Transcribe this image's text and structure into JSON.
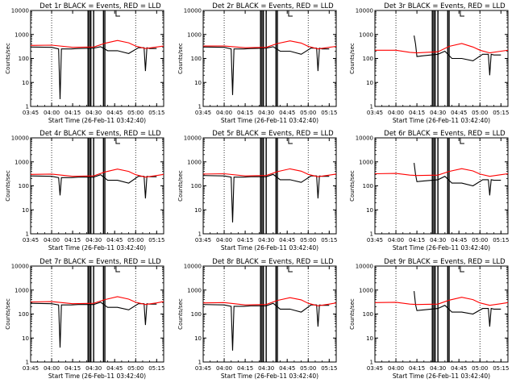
{
  "chart_data": [
    {
      "type": "line",
      "title": "Det 1r BLACK = Events, RED = LLD",
      "xlabel": "Start Time (26-Feb-11 03:42:40)",
      "ylabel": "Counts/sec",
      "yscale": "log",
      "ylim": [
        1,
        10000
      ],
      "xlim": [
        "03:45",
        "05:20"
      ],
      "grid": false,
      "x_ticks": [
        "03:45",
        "04:00",
        "04:15",
        "04:30",
        "04:45",
        "05:00",
        "05:15"
      ],
      "y_ticks": [
        "1",
        "10",
        "100",
        "1000",
        "10000"
      ],
      "series": [
        {
          "name": "Events",
          "color": "#000000",
          "x": [
            "03:45",
            "04:00",
            "04:05",
            "04:06",
            "04:07",
            "04:14",
            "04:19",
            "04:30",
            "04:35",
            "04:40",
            "04:47",
            "04:55",
            "05:02",
            "05:06",
            "05:07",
            "05:08",
            "05:10",
            "05:15"
          ],
          "values": [
            300,
            290,
            250,
            2,
            250,
            250,
            260,
            270,
            310,
            210,
            210,
            160,
            280,
            280,
            30,
            280,
            260,
            260
          ]
        },
        {
          "name": "LLD",
          "color": "#ff0000",
          "x": [
            "03:45",
            "04:00",
            "04:15",
            "04:30",
            "04:38",
            "04:47",
            "04:55",
            "05:00",
            "05:07",
            "05:15",
            "05:20"
          ],
          "values": [
            350,
            360,
            290,
            300,
            430,
            560,
            450,
            330,
            260,
            300,
            330
          ]
        }
      ]
    },
    {
      "type": "line",
      "title": "Det 2r BLACK = Events, RED = LLD",
      "xlabel": "Start Time (26-Feb-11 03:42:40)",
      "ylabel": "Counts/sec",
      "yscale": "log",
      "ylim": [
        1,
        10000
      ],
      "xlim": [
        "03:45",
        "05:20"
      ],
      "grid": false,
      "x_ticks": [
        "03:45",
        "04:00",
        "04:15",
        "04:30",
        "04:45",
        "05:00",
        "05:15"
      ],
      "y_ticks": [
        "1",
        "10",
        "100",
        "1000",
        "10000"
      ],
      "series": [
        {
          "name": "Events",
          "color": "#000000",
          "x": [
            "03:45",
            "04:00",
            "04:05",
            "04:06",
            "04:07",
            "04:14",
            "04:19",
            "04:30",
            "04:35",
            "04:40",
            "04:47",
            "04:55",
            "05:02",
            "05:06",
            "05:07",
            "05:08",
            "05:10",
            "05:15"
          ],
          "values": [
            300,
            290,
            250,
            3,
            250,
            250,
            260,
            270,
            310,
            200,
            200,
            150,
            270,
            270,
            30,
            270,
            250,
            250
          ]
        },
        {
          "name": "LLD",
          "color": "#ff0000",
          "x": [
            "03:45",
            "04:00",
            "04:15",
            "04:30",
            "04:38",
            "04:47",
            "04:55",
            "05:00",
            "05:07",
            "05:15",
            "05:20"
          ],
          "values": [
            330,
            330,
            280,
            290,
            420,
            540,
            440,
            320,
            250,
            290,
            320
          ]
        }
      ]
    },
    {
      "type": "line",
      "title": "Det 3r BLACK = Events, RED = LLD",
      "xlabel": "Start Time (26-Feb-11 03:42:40)",
      "ylabel": "Counts/sec",
      "yscale": "log",
      "ylim": [
        1,
        10000
      ],
      "xlim": [
        "03:45",
        "05:20"
      ],
      "grid": false,
      "x_ticks": [
        "03:45",
        "04:00",
        "04:15",
        "04:30",
        "04:45",
        "05:00",
        "05:15"
      ],
      "y_ticks": [
        "1",
        "10",
        "100",
        "1000",
        "10000"
      ],
      "series": [
        {
          "name": "Events",
          "color": "#000000",
          "x": [
            "04:13",
            "04:14",
            "04:15",
            "04:20",
            "04:30",
            "04:35",
            "04:40",
            "04:47",
            "04:55",
            "05:02",
            "05:06",
            "05:07",
            "05:08",
            "05:10",
            "05:15"
          ],
          "values": [
            900,
            400,
            120,
            130,
            150,
            200,
            100,
            100,
            80,
            150,
            150,
            20,
            150,
            140,
            140
          ]
        },
        {
          "name": "LLD",
          "color": "#ff0000",
          "x": [
            "03:45",
            "04:00",
            "04:10",
            "04:15",
            "04:30",
            "04:38",
            "04:47",
            "04:55",
            "05:00",
            "05:07",
            "05:15",
            "05:20"
          ],
          "values": [
            220,
            220,
            180,
            170,
            190,
            320,
            420,
            300,
            220,
            170,
            200,
            220
          ]
        }
      ]
    },
    {
      "type": "line",
      "title": "Det 4r BLACK = Events, RED = LLD",
      "xlabel": "Start Time (26-Feb-11 03:42:40)",
      "ylabel": "Counts/sec",
      "yscale": "log",
      "ylim": [
        1,
        10000
      ],
      "xlim": [
        "03:45",
        "05:20"
      ],
      "grid": false,
      "x_ticks": [
        "03:45",
        "04:00",
        "04:15",
        "04:30",
        "04:45",
        "05:00",
        "05:15"
      ],
      "y_ticks": [
        "1",
        "10",
        "100",
        "1000",
        "10000"
      ],
      "series": [
        {
          "name": "Events",
          "color": "#000000",
          "x": [
            "03:45",
            "04:00",
            "04:05",
            "04:06",
            "04:07",
            "04:14",
            "04:19",
            "04:30",
            "04:35",
            "04:40",
            "04:47",
            "04:55",
            "05:02",
            "05:06",
            "05:07",
            "05:08",
            "05:10",
            "05:15"
          ],
          "values": [
            260,
            250,
            220,
            40,
            220,
            220,
            230,
            230,
            290,
            170,
            170,
            130,
            250,
            250,
            30,
            250,
            240,
            240
          ]
        },
        {
          "name": "LLD",
          "color": "#ff0000",
          "x": [
            "03:45",
            "04:00",
            "04:15",
            "04:30",
            "04:38",
            "04:47",
            "04:55",
            "05:00",
            "05:07",
            "05:15",
            "05:20"
          ],
          "values": [
            300,
            310,
            250,
            260,
            380,
            500,
            400,
            290,
            230,
            270,
            300
          ]
        }
      ]
    },
    {
      "type": "line",
      "title": "Det 5r BLACK = Events, RED = LLD",
      "xlabel": "Start Time (26-Feb-11 03:42:40)",
      "ylabel": "Counts/sec",
      "yscale": "log",
      "ylim": [
        1,
        10000
      ],
      "xlim": [
        "03:45",
        "05:20"
      ],
      "grid": false,
      "x_ticks": [
        "03:45",
        "04:00",
        "04:15",
        "04:30",
        "04:45",
        "05:00",
        "05:15"
      ],
      "y_ticks": [
        "1",
        "10",
        "100",
        "1000",
        "10000"
      ],
      "series": [
        {
          "name": "Events",
          "color": "#000000",
          "x": [
            "03:45",
            "04:00",
            "04:05",
            "04:06",
            "04:07",
            "04:14",
            "04:19",
            "04:30",
            "04:35",
            "04:40",
            "04:47",
            "04:55",
            "05:02",
            "05:06",
            "05:07",
            "05:08",
            "05:10",
            "05:15"
          ],
          "values": [
            270,
            260,
            230,
            3,
            230,
            230,
            240,
            240,
            300,
            180,
            180,
            140,
            260,
            260,
            30,
            260,
            250,
            250
          ]
        },
        {
          "name": "LLD",
          "color": "#ff0000",
          "x": [
            "03:45",
            "04:00",
            "04:15",
            "04:30",
            "04:38",
            "04:47",
            "04:55",
            "05:00",
            "05:07",
            "05:15",
            "05:20"
          ],
          "values": [
            310,
            320,
            260,
            270,
            390,
            510,
            410,
            300,
            240,
            280,
            310
          ]
        }
      ]
    },
    {
      "type": "line",
      "title": "Det 6r BLACK = Events, RED = LLD",
      "xlabel": "Start Time (26-Feb-11 03:42:40)",
      "ylabel": "Counts/sec",
      "yscale": "log",
      "ylim": [
        1,
        10000
      ],
      "xlim": [
        "03:45",
        "05:20"
      ],
      "grid": false,
      "x_ticks": [
        "03:45",
        "04:00",
        "04:15",
        "04:30",
        "04:45",
        "05:00",
        "05:15"
      ],
      "y_ticks": [
        "1",
        "10",
        "100",
        "1000",
        "10000"
      ],
      "series": [
        {
          "name": "Events",
          "color": "#000000",
          "x": [
            "04:13",
            "04:14",
            "04:15",
            "04:20",
            "04:30",
            "04:35",
            "04:40",
            "04:47",
            "04:55",
            "05:02",
            "05:06",
            "05:07",
            "05:08",
            "05:10",
            "05:15"
          ],
          "values": [
            900,
            300,
            150,
            160,
            180,
            250,
            130,
            130,
            100,
            180,
            180,
            40,
            180,
            170,
            170
          ]
        },
        {
          "name": "LLD",
          "color": "#ff0000",
          "x": [
            "03:45",
            "04:00",
            "04:10",
            "04:15",
            "04:30",
            "04:38",
            "04:47",
            "04:55",
            "05:00",
            "05:07",
            "05:15",
            "05:20"
          ],
          "values": [
            320,
            330,
            280,
            270,
            280,
            400,
            520,
            420,
            310,
            250,
            290,
            320
          ]
        }
      ]
    },
    {
      "type": "line",
      "title": "Det 7r BLACK = Events, RED = LLD",
      "xlabel": "Start Time (26-Feb-11 03:42:40)",
      "ylabel": "Counts/sec",
      "yscale": "log",
      "ylim": [
        1,
        10000
      ],
      "xlim": [
        "03:45",
        "05:20"
      ],
      "grid": false,
      "x_ticks": [
        "03:45",
        "04:00",
        "04:15",
        "04:30",
        "04:45",
        "05:00",
        "05:15"
      ],
      "y_ticks": [
        "1",
        "10",
        "100",
        "1000",
        "10000"
      ],
      "series": [
        {
          "name": "Events",
          "color": "#000000",
          "x": [
            "03:45",
            "04:00",
            "04:05",
            "04:06",
            "04:07",
            "04:14",
            "04:19",
            "04:30",
            "04:35",
            "04:40",
            "04:47",
            "04:55",
            "05:02",
            "05:06",
            "05:07",
            "05:08",
            "05:10",
            "05:15"
          ],
          "values": [
            280,
            270,
            240,
            4,
            240,
            240,
            250,
            250,
            310,
            190,
            190,
            150,
            270,
            270,
            35,
            270,
            260,
            260
          ]
        },
        {
          "name": "LLD",
          "color": "#ff0000",
          "x": [
            "03:45",
            "04:00",
            "04:15",
            "04:30",
            "04:38",
            "04:47",
            "04:55",
            "05:00",
            "05:07",
            "05:15",
            "05:20"
          ],
          "values": [
            320,
            330,
            270,
            280,
            400,
            530,
            420,
            310,
            250,
            290,
            330
          ]
        }
      ]
    },
    {
      "type": "line",
      "title": "Det 8r BLACK = Events, RED = LLD",
      "xlabel": "Start Time (26-Feb-11 03:42:40)",
      "ylabel": "Counts/sec",
      "yscale": "log",
      "ylim": [
        1,
        10000
      ],
      "xlim": [
        "03:45",
        "05:20"
      ],
      "grid": false,
      "x_ticks": [
        "03:45",
        "04:00",
        "04:15",
        "04:30",
        "04:45",
        "05:00",
        "05:15"
      ],
      "y_ticks": [
        "1",
        "10",
        "100",
        "1000",
        "10000"
      ],
      "series": [
        {
          "name": "Events",
          "color": "#000000",
          "x": [
            "03:45",
            "04:00",
            "04:05",
            "04:06",
            "04:07",
            "04:14",
            "04:19",
            "04:30",
            "04:35",
            "04:40",
            "04:47",
            "04:55",
            "05:02",
            "05:06",
            "05:07",
            "05:08",
            "05:10",
            "05:15"
          ],
          "values": [
            250,
            240,
            210,
            3,
            210,
            210,
            220,
            220,
            280,
            160,
            160,
            120,
            240,
            240,
            30,
            240,
            230,
            230
          ]
        },
        {
          "name": "LLD",
          "color": "#ff0000",
          "x": [
            "03:45",
            "04:00",
            "04:15",
            "04:30",
            "04:38",
            "04:47",
            "04:55",
            "05:00",
            "05:07",
            "05:15",
            "05:20"
          ],
          "values": [
            290,
            300,
            240,
            250,
            370,
            480,
            390,
            280,
            220,
            260,
            290
          ]
        }
      ]
    },
    {
      "type": "line",
      "title": "Det 9r BLACK = Events, RED = LLD",
      "xlabel": "Start Time (26-Feb-11 03:42:40)",
      "ylabel": "Counts/sec",
      "yscale": "log",
      "ylim": [
        1,
        10000
      ],
      "xlim": [
        "03:45",
        "05:20"
      ],
      "grid": false,
      "x_ticks": [
        "03:45",
        "04:00",
        "04:15",
        "04:30",
        "04:45",
        "05:00",
        "05:15"
      ],
      "y_ticks": [
        "1",
        "10",
        "100",
        "1000",
        "10000"
      ],
      "series": [
        {
          "name": "Events",
          "color": "#000000",
          "x": [
            "04:13",
            "04:14",
            "04:15",
            "04:20",
            "04:30",
            "04:35",
            "04:40",
            "04:47",
            "04:55",
            "05:02",
            "05:06",
            "05:07",
            "05:08",
            "05:10",
            "05:15"
          ],
          "values": [
            900,
            250,
            140,
            150,
            170,
            230,
            120,
            120,
            100,
            170,
            170,
            30,
            170,
            160,
            160
          ]
        },
        {
          "name": "LLD",
          "color": "#ff0000",
          "x": [
            "03:45",
            "04:00",
            "04:10",
            "04:15",
            "04:30",
            "04:38",
            "04:47",
            "04:55",
            "05:00",
            "05:07",
            "05:15",
            "05:20"
          ],
          "values": [
            300,
            310,
            260,
            250,
            260,
            380,
            500,
            400,
            290,
            230,
            270,
            300
          ]
        }
      ]
    }
  ]
}
